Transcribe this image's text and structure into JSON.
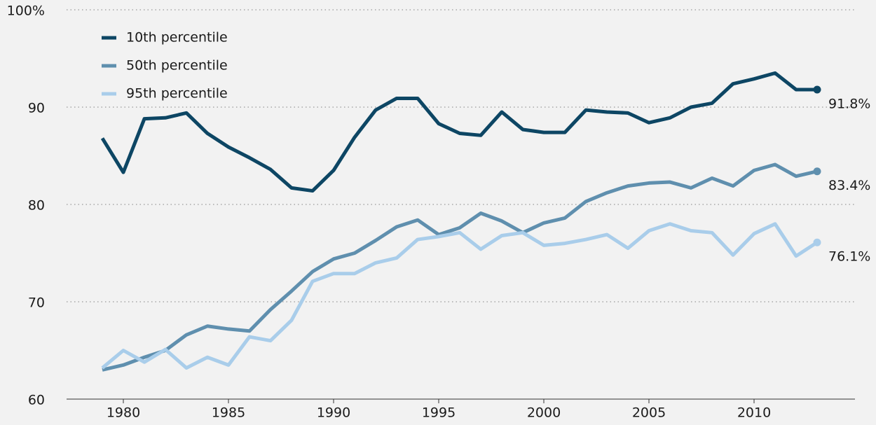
{
  "chart_data": {
    "type": "line",
    "x": [
      1979,
      1980,
      1981,
      1982,
      1983,
      1984,
      1985,
      1986,
      1987,
      1988,
      1989,
      1990,
      1991,
      1992,
      1993,
      1994,
      1995,
      1996,
      1997,
      1998,
      1999,
      2000,
      2001,
      2002,
      2003,
      2004,
      2005,
      2006,
      2007,
      2008,
      2009,
      2010,
      2011,
      2012,
      2013
    ],
    "series": [
      {
        "name": "10th percentile",
        "color": "#0d4664",
        "values": [
          86.8,
          83.3,
          88.8,
          88.9,
          89.4,
          87.3,
          85.9,
          84.8,
          83.6,
          81.7,
          81.4,
          83.5,
          86.9,
          89.7,
          90.9,
          90.9,
          88.3,
          87.3,
          87.1,
          89.5,
          87.7,
          87.4,
          87.4,
          89.7,
          89.5,
          89.4,
          88.4,
          88.9,
          90.0,
          90.4,
          92.4,
          92.9,
          93.5,
          91.8,
          91.8
        ],
        "value_labels": [
          null,
          null,
          null,
          null,
          null,
          null,
          null,
          null,
          null,
          null,
          null,
          null,
          null,
          null,
          null,
          null,
          null,
          null,
          null,
          null,
          null,
          null,
          null,
          null,
          null,
          null,
          null,
          null,
          null,
          null,
          null,
          null,
          null,
          null,
          "91.8%"
        ]
      },
      {
        "name": "50th percentile",
        "color": "#5f8fae",
        "values": [
          63.0,
          63.5,
          64.3,
          65.0,
          66.6,
          67.5,
          67.2,
          67.0,
          69.2,
          71.1,
          73.1,
          74.4,
          75.0,
          76.3,
          77.7,
          78.4,
          76.9,
          77.6,
          79.1,
          78.3,
          77.1,
          78.1,
          78.6,
          80.3,
          81.2,
          81.9,
          82.2,
          82.3,
          81.7,
          82.7,
          81.9,
          83.5,
          84.1,
          82.9,
          83.4
        ],
        "value_labels": [
          null,
          null,
          null,
          null,
          null,
          null,
          null,
          null,
          null,
          null,
          null,
          null,
          null,
          null,
          null,
          null,
          null,
          null,
          null,
          null,
          null,
          null,
          null,
          null,
          null,
          null,
          null,
          null,
          null,
          null,
          null,
          null,
          null,
          null,
          "83.4%"
        ]
      },
      {
        "name": "95th percentile",
        "color": "#a9cdea",
        "values": [
          63.2,
          65.0,
          63.8,
          65.1,
          63.2,
          64.3,
          63.5,
          66.4,
          66.0,
          68.1,
          72.1,
          72.9,
          72.9,
          74.0,
          74.5,
          76.4,
          76.7,
          77.1,
          75.4,
          76.8,
          77.1,
          75.8,
          76.0,
          76.4,
          76.9,
          75.5,
          77.3,
          78.0,
          77.3,
          77.1,
          74.8,
          77.0,
          78.0,
          74.7,
          76.1
        ],
        "value_labels": [
          null,
          null,
          null,
          null,
          null,
          null,
          null,
          null,
          null,
          null,
          null,
          null,
          null,
          null,
          null,
          null,
          null,
          null,
          null,
          null,
          null,
          null,
          null,
          null,
          null,
          null,
          null,
          null,
          null,
          null,
          null,
          null,
          null,
          null,
          "76.1%"
        ]
      }
    ],
    "xlim": [
      1977.3,
      2014.8
    ],
    "xticks": [
      1980,
      1985,
      1990,
      1995,
      2000,
      2005,
      2010
    ],
    "ylim": [
      60,
      100
    ],
    "yticks": [
      60,
      70,
      80,
      90,
      {
        "value": 100,
        "label": "100%"
      }
    ],
    "grid": true,
    "legend": "top-left"
  }
}
